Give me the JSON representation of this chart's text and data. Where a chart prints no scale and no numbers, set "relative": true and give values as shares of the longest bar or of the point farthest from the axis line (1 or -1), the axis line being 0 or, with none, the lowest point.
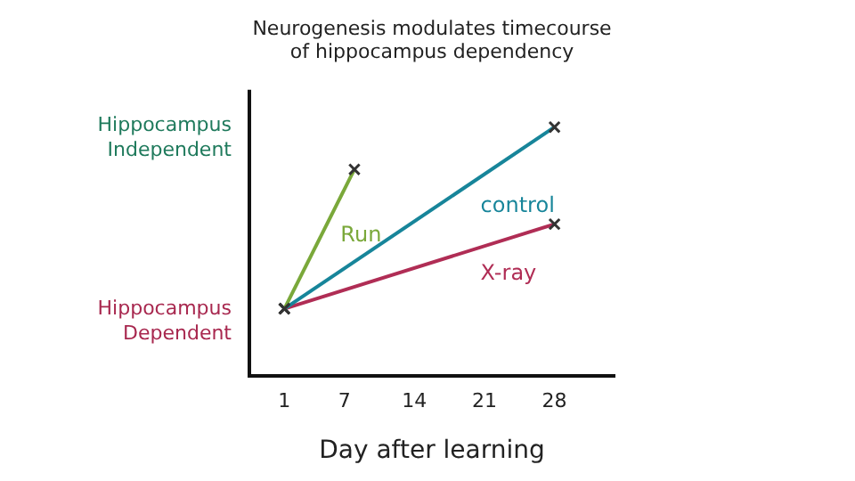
{
  "chart_data": {
    "type": "line",
    "title": "Neurogenesis modulates timecourse of hippocampus dependency",
    "xlabel": "Day after learning",
    "relative": true,
    "xlim": [
      -2.5,
      34
    ],
    "xticks": [
      1,
      7,
      14,
      21,
      28
    ],
    "grid": false,
    "legend": false,
    "marker": "cross",
    "line_style": "solid",
    "annotations": [
      "Hippocampus Independent",
      "Hippocampus Dependent"
    ],
    "series": [
      {
        "name": "Run",
        "color": "#7aa83a",
        "x": [
          1,
          8
        ],
        "values": [
          0.27,
          0.83
        ]
      },
      {
        "name": "control",
        "color": "#17859a",
        "x": [
          1,
          28
        ],
        "values": [
          0.27,
          1
        ]
      },
      {
        "name": "X-ray",
        "color": "#b02d55",
        "x": [
          1,
          28
        ],
        "values": [
          0.27,
          0.61
        ]
      }
    ]
  }
}
